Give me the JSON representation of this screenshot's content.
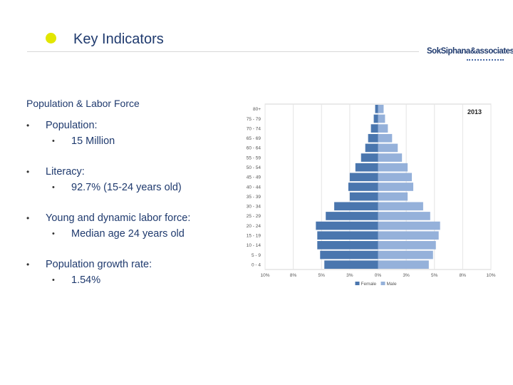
{
  "header": {
    "title": "Key Indicators",
    "logo_text": "SokSiphana&associates"
  },
  "section": {
    "title": "Population & Labor Force"
  },
  "bullets": [
    {
      "label": "Population:",
      "sub": "15 Million"
    },
    {
      "label": "Literacy:",
      "sub": "92.7% (15-24 years old)"
    },
    {
      "label": "Young and dynamic labor force:",
      "sub": "Median age 24 years old"
    },
    {
      "label": "Population growth rate:",
      "sub": "1.54%"
    }
  ],
  "colors": {
    "female": "#4a76ae",
    "male": "#95b1da",
    "title": "#1f3a6e",
    "dot": "#e2e600"
  },
  "chart_data": {
    "type": "bar",
    "orientation": "horizontal",
    "title": "2013",
    "categories": [
      "80+",
      "75 - 79",
      "70 - 74",
      "65 - 69",
      "60 - 64",
      "55 - 59",
      "50 - 54",
      "45 - 49",
      "40 - 44",
      "35 - 39",
      "30 - 34",
      "25 - 29",
      "20 - 24",
      "15 - 19",
      "10 - 14",
      "5 - 9",
      "0 - 4"
    ],
    "series": [
      {
        "name": "Female",
        "side": "left",
        "values": [
          0.2,
          0.3,
          0.5,
          0.7,
          0.9,
          1.2,
          1.6,
          2.0,
          2.1,
          2.0,
          3.1,
          3.7,
          4.4,
          4.3,
          4.3,
          4.1,
          3.8
        ]
      },
      {
        "name": "Male",
        "side": "right",
        "values": [
          0.4,
          0.5,
          0.7,
          1.0,
          1.4,
          1.7,
          2.1,
          2.4,
          2.5,
          2.1,
          3.2,
          3.7,
          4.4,
          4.3,
          4.1,
          3.9,
          3.6
        ]
      }
    ],
    "x_ticks": [
      "10%",
      "8%",
      "5%",
      "3%",
      "0%",
      "3%",
      "5%",
      "8%",
      "10%"
    ],
    "xlim": [
      -8,
      8
    ],
    "legend": "bottom",
    "grid": true
  }
}
